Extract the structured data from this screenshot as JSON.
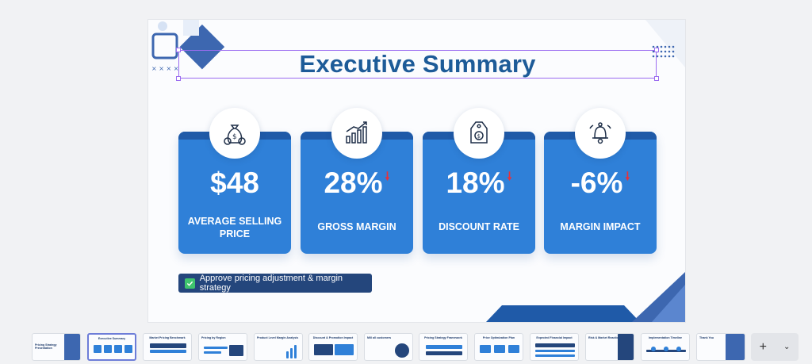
{
  "slide": {
    "title": "Executive Summary",
    "cards": [
      {
        "value": "$48",
        "label": "AVERAGE SELLING PRICE",
        "icon": "money-bag-icon",
        "trend": ""
      },
      {
        "value": "28%",
        "label": "GROSS MARGIN",
        "icon": "bar-chart-growth-icon",
        "trend": "down"
      },
      {
        "value": "18%",
        "label": "DISCOUNT RATE",
        "icon": "price-tag-icon",
        "trend": "down"
      },
      {
        "value": "-6%",
        "label": "MARGIN IMPACT",
        "icon": "bell-alert-icon",
        "trend": "down"
      }
    ],
    "approve_text": "Approve pricing adjustment & margin strategy",
    "colors": {
      "title": "#1d5b98",
      "card": "#2f80d8",
      "card_top": "#1f5aa8",
      "down_arrow": "#e8313a",
      "tag": "#24467c",
      "check": "#3ec46d",
      "selection": "#9b6cf0"
    }
  },
  "filmstrip": {
    "thumbnails": [
      {
        "title": "Pricing Strategy Presentation",
        "active": false
      },
      {
        "title": "Executive Summary",
        "active": true
      },
      {
        "title": "Market Pricing Benchmark",
        "active": false
      },
      {
        "title": "Pricing by Region",
        "active": false
      },
      {
        "title": "Product Level Margin Analysis",
        "active": false
      },
      {
        "title": "Discount & Promotion Impact",
        "active": false
      },
      {
        "title": "Mill all customers",
        "active": false
      },
      {
        "title": "Pricing Strategy Framework",
        "active": false
      },
      {
        "title": "Price Optimization Plan",
        "active": false
      },
      {
        "title": "Expected Financial Impact",
        "active": false
      },
      {
        "title": "Risk & Market Reaction",
        "active": false
      },
      {
        "title": "Implementation Timeline",
        "active": false
      },
      {
        "title": "Thank You",
        "active": false
      }
    ],
    "add_label": "+",
    "menu_icon": "chevron-down-icon"
  }
}
